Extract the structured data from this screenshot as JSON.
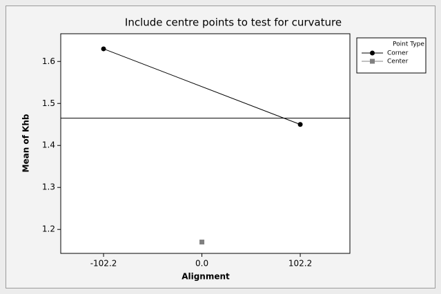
{
  "chart_data": {
    "type": "line",
    "title": "Include centre points to test for curvature",
    "xlabel": "Alignment",
    "ylabel": "Mean of Khb",
    "legend_title": "Point Type",
    "legend": "right",
    "xlim": [
      -146.7,
      153.8
    ],
    "ylim": [
      1.143,
      1.666
    ],
    "xticks": [
      -102.2,
      {
        "value": 0,
        "label": "0.0"
      },
      102.2
    ],
    "yticks": [
      1.2,
      1.3,
      1.4,
      1.5,
      1.6
    ],
    "reference_line": 1.465,
    "series": [
      {
        "name": "Corner",
        "color": "#000000",
        "marker": "circle",
        "x": [
          -102.2,
          102.2
        ],
        "values": [
          1.63,
          1.45
        ]
      },
      {
        "name": "Center",
        "color": "#808080",
        "marker": "square",
        "x": [
          0
        ],
        "values": [
          1.17
        ]
      }
    ]
  }
}
